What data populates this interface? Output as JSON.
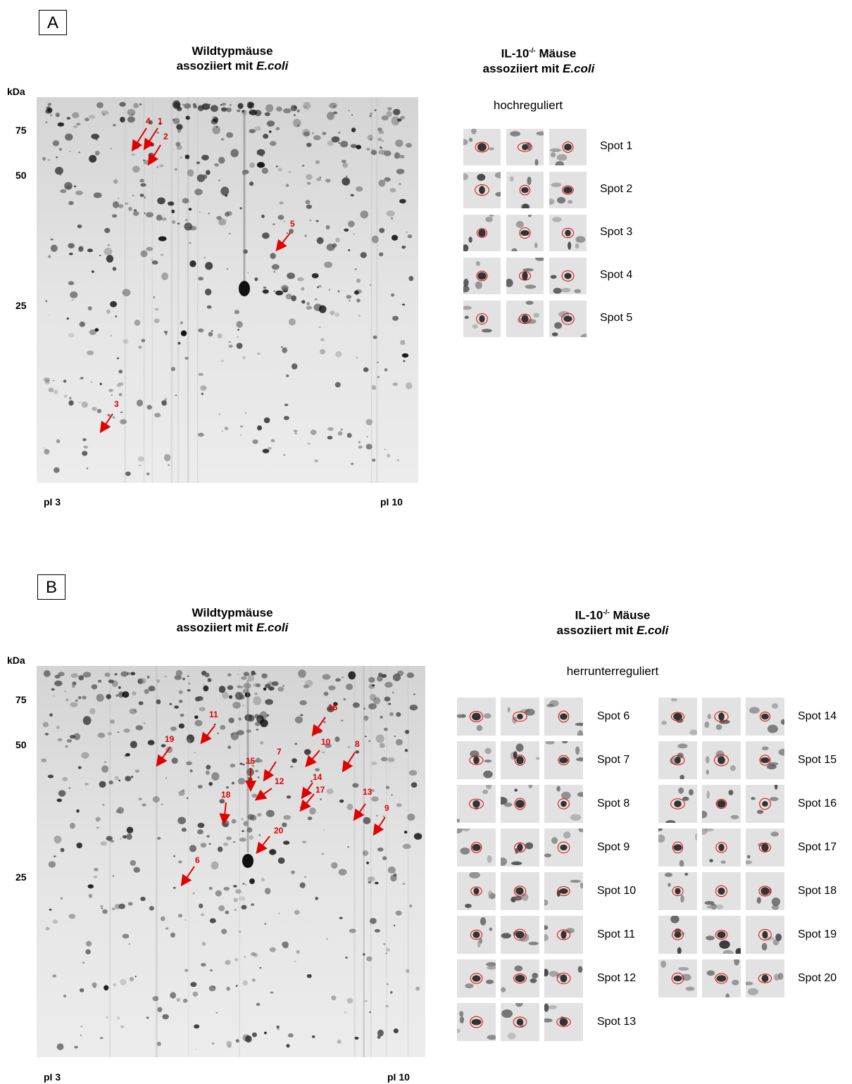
{
  "panelA": {
    "label": "A",
    "left_title": {
      "line1": "Wildtypmäuse",
      "line2_prefix": "assoziiert mit ",
      "line2_italic": "E.coli"
    },
    "right_title": {
      "line1_prefix": "IL-10",
      "line1_sup": "-/-",
      "line1_suffix": " Mäuse",
      "line2_prefix": "assoziiert mit ",
      "line2_italic": "E.coli"
    },
    "kda": "kDa",
    "markers": [
      "75",
      "50",
      "25"
    ],
    "pi_left": "pI 3",
    "pi_right": "pI 10",
    "subtitle": "hochreguliert",
    "arrows": [
      "4",
      "1",
      "2",
      "5",
      "3"
    ],
    "spots": [
      "Spot 1",
      "Spot 2",
      "Spot 3",
      "Spot 4",
      "Spot 5"
    ]
  },
  "panelB": {
    "label": "B",
    "left_title": {
      "line1": "Wildtypmäuse",
      "line2_prefix": "assoziiert mit ",
      "line2_italic": "E.coli"
    },
    "right_title": {
      "line1_prefix": "IL-10",
      "line1_sup": "-/-",
      "line1_suffix": " Mäuse",
      "line2_prefix": "assoziiert mit ",
      "line2_italic": "E.coli"
    },
    "kda": "kDa",
    "markers": [
      "75",
      "50",
      "25"
    ],
    "pi_left": "pI 3",
    "pi_right": "pI 10",
    "subtitle": "herrunterreguliert",
    "arrows": [
      "11",
      "16",
      "19",
      "7",
      "10",
      "8",
      "15",
      "12",
      "14",
      "17",
      "18",
      "13",
      "9",
      "20",
      "6"
    ],
    "spots_left": [
      "Spot 6",
      "Spot 7",
      "Spot 8",
      "Spot 9",
      "Spot 10",
      "Spot 11",
      "Spot 12",
      "Spot 13"
    ],
    "spots_right": [
      "Spot 14",
      "Spot 15",
      "Spot 16",
      "Spot 17",
      "Spot 18",
      "Spot 19",
      "Spot 20"
    ]
  },
  "colors": {
    "arrow": "#e00000",
    "gel_bg": "#e6e6e6",
    "spot": "#1a1a1a"
  }
}
